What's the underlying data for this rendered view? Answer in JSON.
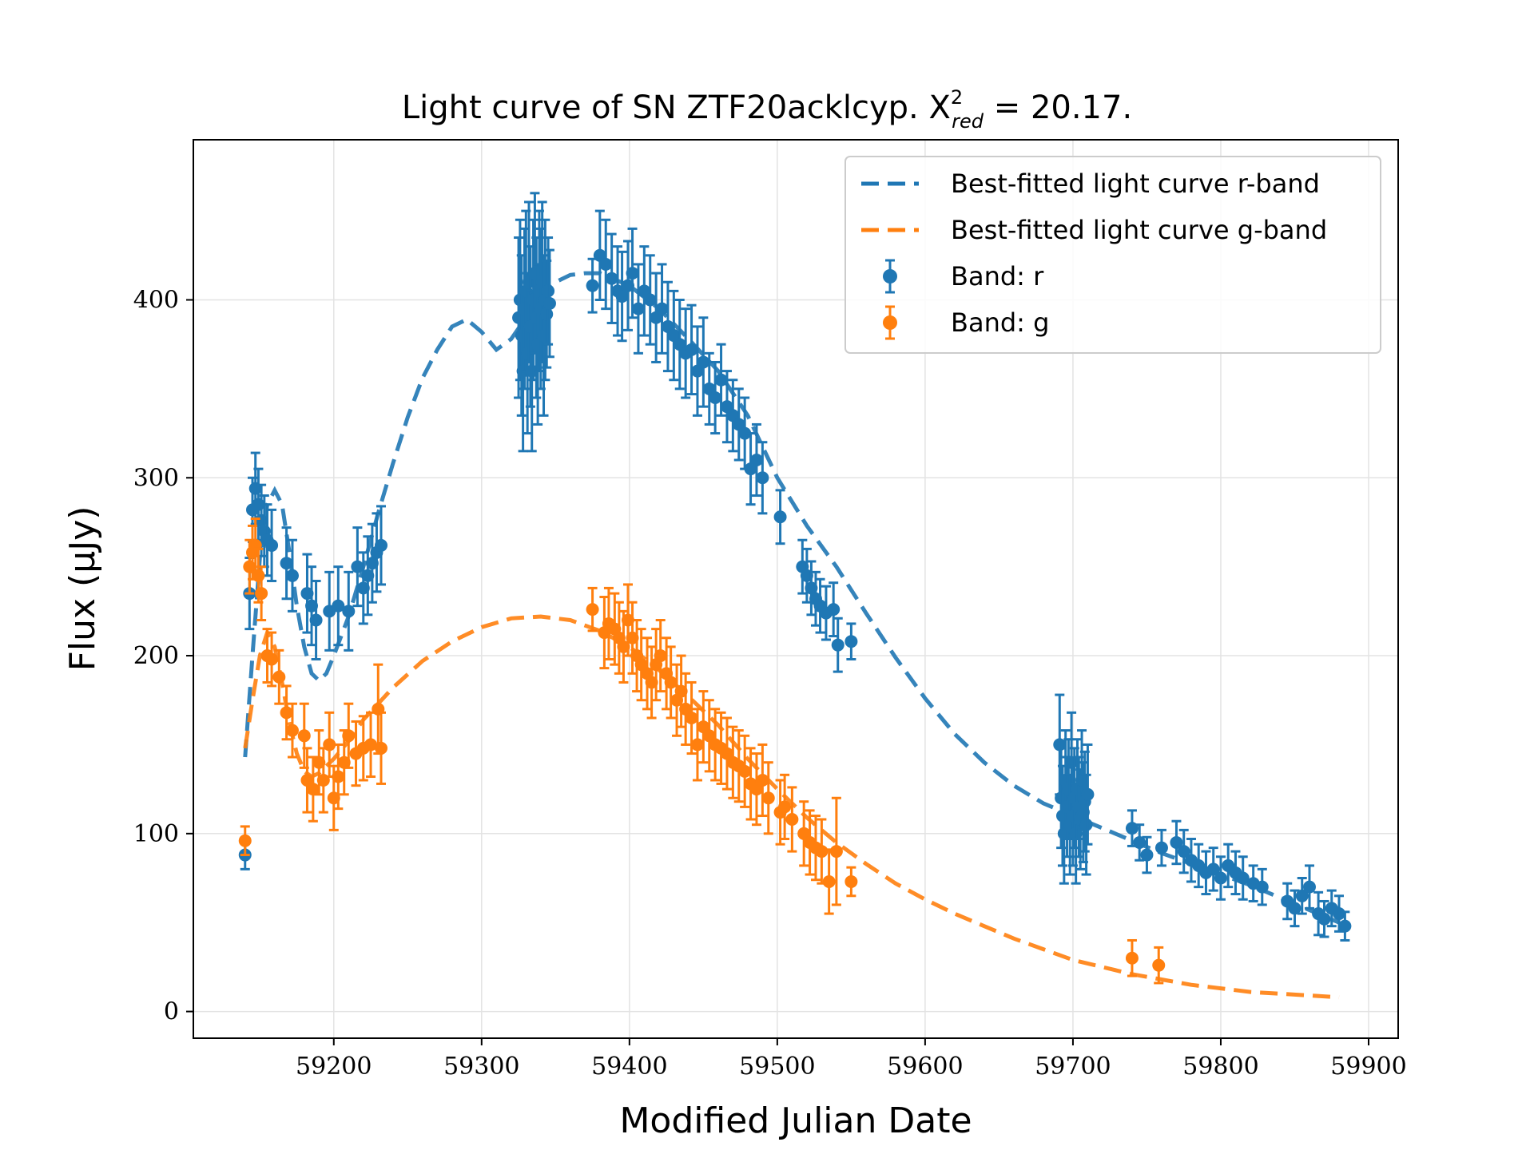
{
  "chart_data": {
    "type": "scatter",
    "title": "Light curve of SN ZTF20acklcyp. X",
    "title_sup": "2",
    "title_sub": "red",
    "title_tail": " = 20.17.",
    "xlabel": "Modified Julian Date",
    "ylabel": "Flux (μJy)",
    "xlim": [
      59105,
      59920
    ],
    "ylim": [
      -15,
      490
    ],
    "xticks": [
      59200,
      59300,
      59400,
      59500,
      59600,
      59700,
      59800,
      59900
    ],
    "yticks": [
      0,
      100,
      200,
      300,
      400
    ],
    "grid": true,
    "legend_position": "top-right",
    "colors": {
      "r": "#1f77b4",
      "g": "#ff7f0e"
    },
    "series": [
      {
        "name": "Best-fitted light curve r-band",
        "kind": "model",
        "color": "#1f77b4",
        "x": [
          59140,
          59145,
          59150,
          59155,
          59160,
          59165,
          59170,
          59175,
          59180,
          59185,
          59190,
          59195,
          59200,
          59210,
          59220,
          59230,
          59240,
          59250,
          59260,
          59270,
          59280,
          59290,
          59300,
          59310,
          59320,
          59330,
          59340,
          59350,
          59360,
          59370,
          59380,
          59400,
          59420,
          59440,
          59460,
          59480,
          59500,
          59520,
          59540,
          59560,
          59580,
          59600,
          59620,
          59640,
          59660,
          59680,
          59700,
          59720,
          59740,
          59760,
          59780,
          59800,
          59820,
          59840,
          59860,
          59880
        ],
        "y": [
          143,
          200,
          255,
          285,
          293,
          285,
          258,
          228,
          205,
          190,
          186,
          190,
          200,
          222,
          250,
          280,
          308,
          334,
          356,
          372,
          385,
          389,
          382,
          372,
          378,
          390,
          402,
          410,
          414,
          415,
          415,
          408,
          395,
          378,
          360,
          335,
          300,
          273,
          250,
          224,
          199,
          176,
          156,
          140,
          127,
          117,
          110,
          103,
          96,
          89,
          83,
          77,
          71,
          64,
          57,
          50
        ]
      },
      {
        "name": "Best-fitted light curve g-band",
        "kind": "model",
        "color": "#ff7f0e",
        "x": [
          59140,
          59145,
          59150,
          59155,
          59160,
          59165,
          59170,
          59175,
          59180,
          59185,
          59190,
          59200,
          59210,
          59220,
          59240,
          59260,
          59280,
          59300,
          59320,
          59340,
          59360,
          59380,
          59400,
          59420,
          59440,
          59460,
          59480,
          59500,
          59520,
          59540,
          59560,
          59580,
          59600,
          59620,
          59640,
          59660,
          59680,
          59700,
          59720,
          59740,
          59760,
          59780,
          59800,
          59820,
          59840,
          59860,
          59880
        ],
        "y": [
          148,
          175,
          200,
          213,
          205,
          185,
          162,
          145,
          135,
          132,
          134,
          142,
          152,
          164,
          182,
          197,
          208,
          216,
          221,
          222,
          220,
          214,
          205,
          192,
          177,
          161,
          142,
          125,
          109,
          95,
          83,
          72,
          63,
          55,
          48,
          41,
          35,
          29,
          25,
          21,
          18,
          15,
          13,
          11,
          10,
          9,
          8
        ]
      },
      {
        "name": "Band: r",
        "kind": "points",
        "color": "#1f77b4",
        "x": [
          59140,
          59143,
          59145,
          59147,
          59149,
          59151,
          59153,
          59155,
          59158,
          59168,
          59172,
          59182,
          59185,
          59188,
          59197,
          59203,
          59210,
          59216,
          59220,
          59223,
          59226,
          59229,
          59232,
          59325,
          59326,
          59327,
          59328,
          59329,
          59330,
          59331,
          59332,
          59333,
          59334,
          59335,
          59336,
          59337,
          59338,
          59339,
          59340,
          59341,
          59342,
          59343,
          59344,
          59345,
          59346,
          59375,
          59380,
          59384,
          59388,
          59392,
          59395,
          59399,
          59402,
          59406,
          59410,
          59414,
          59418,
          59422,
          59426,
          59430,
          59434,
          59438,
          59442,
          59446,
          59450,
          59454,
          59458,
          59462,
          59466,
          59470,
          59474,
          59478,
          59482,
          59486,
          59490,
          59502,
          59517,
          59520,
          59523,
          59526,
          59529,
          59533,
          59538,
          59541,
          59550,
          59691,
          59692,
          59693,
          59694,
          59695,
          59696,
          59697,
          59698,
          59699,
          59700,
          59701,
          59702,
          59703,
          59704,
          59705,
          59706,
          59707,
          59708,
          59709,
          59710,
          59740,
          59745,
          59750,
          59760,
          59770,
          59775,
          59780,
          59785,
          59790,
          59795,
          59800,
          59805,
          59810,
          59815,
          59822,
          59828,
          59845,
          59850,
          59855,
          59860,
          59866,
          59870,
          59875,
          59880,
          59884
        ],
        "y": [
          88,
          235,
          282,
          294,
          285,
          276,
          270,
          265,
          262,
          252,
          245,
          235,
          228,
          220,
          225,
          228,
          225,
          250,
          238,
          245,
          252,
          258,
          262,
          390,
          400,
          380,
          360,
          395,
          405,
          370,
          410,
          385,
          360,
          400,
          415,
          390,
          375,
          405,
          395,
          410,
          380,
          400,
          392,
          405,
          398,
          408,
          425,
          420,
          412,
          405,
          402,
          408,
          415,
          395,
          405,
          400,
          390,
          395,
          385,
          380,
          375,
          370,
          372,
          360,
          365,
          350,
          345,
          355,
          340,
          335,
          330,
          325,
          305,
          310,
          300,
          278,
          250,
          245,
          238,
          232,
          228,
          224,
          226,
          206,
          208,
          150,
          120,
          110,
          100,
          130,
          115,
          125,
          105,
          140,
          110,
          120,
          100,
          125,
          115,
          108,
          130,
          112,
          118,
          105,
          122,
          103,
          95,
          88,
          92,
          95,
          90,
          85,
          82,
          78,
          80,
          75,
          82,
          78,
          75,
          72,
          70,
          62,
          58,
          65,
          70,
          55,
          52,
          58,
          55,
          48
        ],
        "err": [
          8,
          20,
          18,
          20,
          20,
          20,
          20,
          20,
          20,
          20,
          20,
          22,
          22,
          22,
          22,
          22,
          22,
          22,
          20,
          22,
          22,
          22,
          22,
          45,
          45,
          45,
          45,
          45,
          45,
          45,
          45,
          45,
          45,
          45,
          45,
          45,
          45,
          45,
          45,
          45,
          45,
          45,
          30,
          30,
          30,
          15,
          25,
          25,
          25,
          25,
          25,
          25,
          25,
          25,
          25,
          25,
          25,
          25,
          25,
          25,
          25,
          25,
          25,
          25,
          25,
          20,
          20,
          20,
          20,
          20,
          20,
          20,
          20,
          20,
          20,
          15,
          15,
          15,
          15,
          15,
          15,
          15,
          15,
          15,
          10,
          28,
          28,
          28,
          28,
          28,
          28,
          28,
          28,
          28,
          28,
          28,
          28,
          28,
          28,
          28,
          28,
          28,
          28,
          28,
          28,
          10,
          10,
          10,
          10,
          12,
          12,
          12,
          12,
          12,
          12,
          12,
          12,
          12,
          12,
          10,
          10,
          10,
          10,
          10,
          12,
          12,
          10,
          10,
          10,
          8
        ]
      },
      {
        "name": "Band: g",
        "kind": "points",
        "color": "#ff7f0e",
        "x": [
          59140,
          59143,
          59145,
          59147,
          59149,
          59151,
          59155,
          59158,
          59163,
          59168,
          59172,
          59180,
          59182,
          59186,
          59190,
          59193,
          59197,
          59200,
          59203,
          59207,
          59210,
          59215,
          59220,
          59225,
          59230,
          59232,
          59375,
          59383,
          59386,
          59390,
          59393,
          59396,
          59399,
          59402,
          59405,
          59408,
          59412,
          59415,
          59418,
          59421,
          59425,
          59428,
          59432,
          59435,
          59438,
          59442,
          59446,
          59450,
          59454,
          59458,
          59462,
          59466,
          59470,
          59474,
          59478,
          59482,
          59486,
          59490,
          59494,
          59502,
          59505,
          59510,
          59518,
          59522,
          59526,
          59530,
          59535,
          59540,
          59550,
          59740,
          59758
        ],
        "y": [
          96,
          250,
          258,
          262,
          245,
          235,
          200,
          198,
          188,
          168,
          158,
          155,
          130,
          125,
          140,
          130,
          150,
          120,
          132,
          140,
          155,
          145,
          148,
          150,
          170,
          148,
          226,
          213,
          218,
          215,
          210,
          205,
          220,
          210,
          200,
          195,
          190,
          185,
          195,
          200,
          190,
          185,
          175,
          180,
          170,
          165,
          150,
          160,
          155,
          150,
          148,
          145,
          140,
          138,
          135,
          128,
          125,
          130,
          120,
          112,
          115,
          108,
          100,
          95,
          92,
          90,
          73,
          90,
          73,
          30,
          26
        ],
        "err": [
          8,
          15,
          15,
          15,
          15,
          15,
          15,
          15,
          15,
          15,
          15,
          18,
          18,
          18,
          18,
          18,
          18,
          18,
          18,
          18,
          18,
          18,
          18,
          18,
          25,
          20,
          12,
          20,
          20,
          20,
          20,
          20,
          20,
          20,
          20,
          20,
          20,
          20,
          20,
          20,
          20,
          20,
          20,
          20,
          20,
          20,
          20,
          20,
          20,
          20,
          20,
          20,
          20,
          20,
          20,
          20,
          20,
          20,
          20,
          18,
          18,
          18,
          18,
          18,
          18,
          18,
          18,
          30,
          8,
          10,
          10
        ]
      }
    ]
  }
}
